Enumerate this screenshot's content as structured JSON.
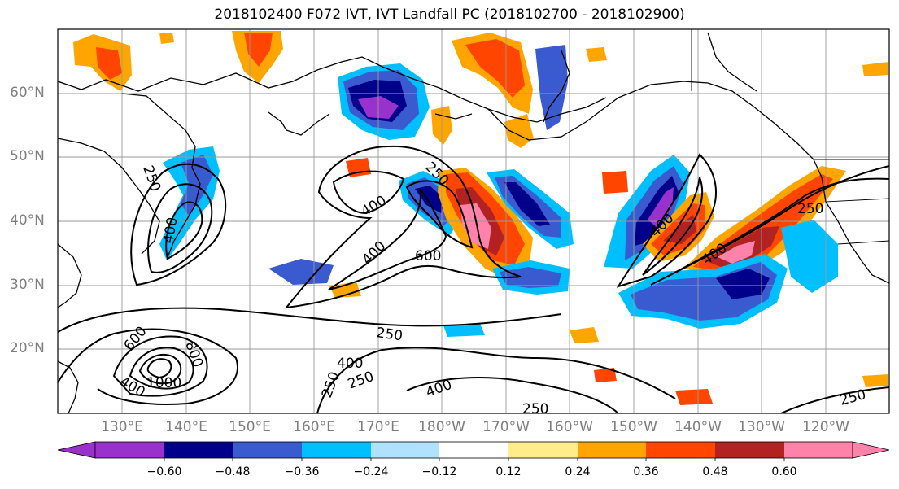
{
  "title": "2018102400 F072 IVT, IVT Landfall PC (2018102700 - 2018102900)",
  "lat_labels": [
    "60°N",
    "50°N",
    "40°N",
    "30°N",
    "20°N"
  ],
  "lon_labels": [
    "130°E",
    "140°E",
    "150°E",
    "160°E",
    "170°E",
    "180°W",
    "170°W",
    "160°W",
    "150°W",
    "140°W",
    "130°W",
    "120°W"
  ],
  "colorbar": {
    "colors": [
      "#9932cc",
      "#00008b",
      "#3a5bcf",
      "#00bfff",
      "#b0e2ff",
      "#ffffff",
      "#ffec8b",
      "#ffa500",
      "#ff4500",
      "#b22222",
      "#ff82ab"
    ],
    "tick_labels": [
      "−0.60",
      "−0.48",
      "−0.36",
      "−0.24",
      "−0.12",
      "0.12",
      "0.24",
      "0.36",
      "0.48",
      "0.60"
    ]
  },
  "contour_labels": [
    "250",
    "400",
    "400",
    "600",
    "250",
    "400",
    "250",
    "400",
    "250",
    "600",
    "800",
    "400",
    "1000",
    "250",
    "250",
    "400",
    "250",
    "400",
    "400",
    "250",
    "250"
  ]
}
